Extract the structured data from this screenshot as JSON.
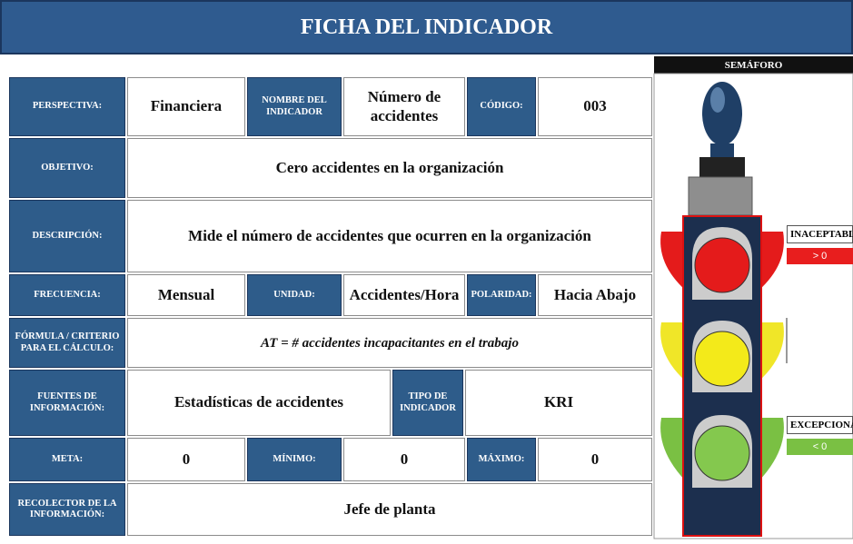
{
  "header": {
    "title": "FICHA DEL INDICADOR"
  },
  "semaforo": {
    "title": "SEMÁFORO",
    "levels": [
      {
        "label": "INACEPTABLE",
        "condition": "> 0"
      },
      {
        "label": "EXCEPCIONAL",
        "condition": "< 0"
      }
    ]
  },
  "table": {
    "rows": [
      [
        "PERSPECTIVA:",
        "Financiera",
        "NOMBRE DEL INDICADOR",
        "Número de accidentes",
        "CÓDIGO:",
        "003"
      ],
      [
        "OBJETIVO:",
        "Cero accidentes en la organización"
      ],
      [
        "DESCRIPCIÓN:",
        "Mide el número de accidentes que ocurren en la organización"
      ],
      [
        "FRECUENCIA:",
        "Mensual",
        "UNIDAD:",
        "Accidentes/Hora",
        "POLARIDAD:",
        "Hacia Abajo"
      ],
      [
        "FÓRMULA / CRITERIO PARA EL CÁLCULO:",
        "AT = # accidentes incapacitantes en el trabajo"
      ],
      [
        "FUENTES DE INFORMACIÓN:",
        "Estadísticas de accidentes",
        "Tipo de Indicador",
        "KRI"
      ],
      [
        "META:",
        "0",
        "MÍNIMO:",
        "0",
        "MÁXIMO:",
        "0"
      ],
      [
        "RECOLECTOR DE LA INFORMACIÓN:",
        "Jefe de planta"
      ]
    ]
  }
}
